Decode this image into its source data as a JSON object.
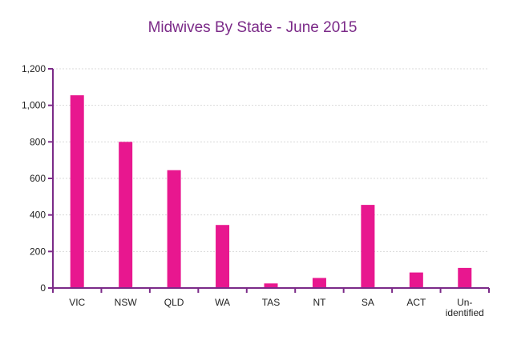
{
  "chart_data": {
    "type": "bar",
    "title": "Midwives By State - June 2015",
    "categories": [
      "VIC",
      "NSW",
      "QLD",
      "WA",
      "TAS",
      "NT",
      "SA",
      "ACT",
      "Un-\nidentified"
    ],
    "values": [
      1055,
      800,
      645,
      345,
      25,
      55,
      455,
      85,
      110
    ],
    "ylim": [
      0,
      1200
    ],
    "yticks": [
      0,
      200,
      400,
      600,
      800,
      "1,000",
      "1,200"
    ],
    "ytick_values": [
      0,
      200,
      400,
      600,
      800,
      1000,
      1200
    ],
    "grid": true,
    "xlabel": "",
    "ylabel": ""
  },
  "colors": {
    "bar": "#e8178f",
    "axis": "#7b2a88",
    "title": "#7b2a88",
    "grid": "#d9d9d9"
  }
}
